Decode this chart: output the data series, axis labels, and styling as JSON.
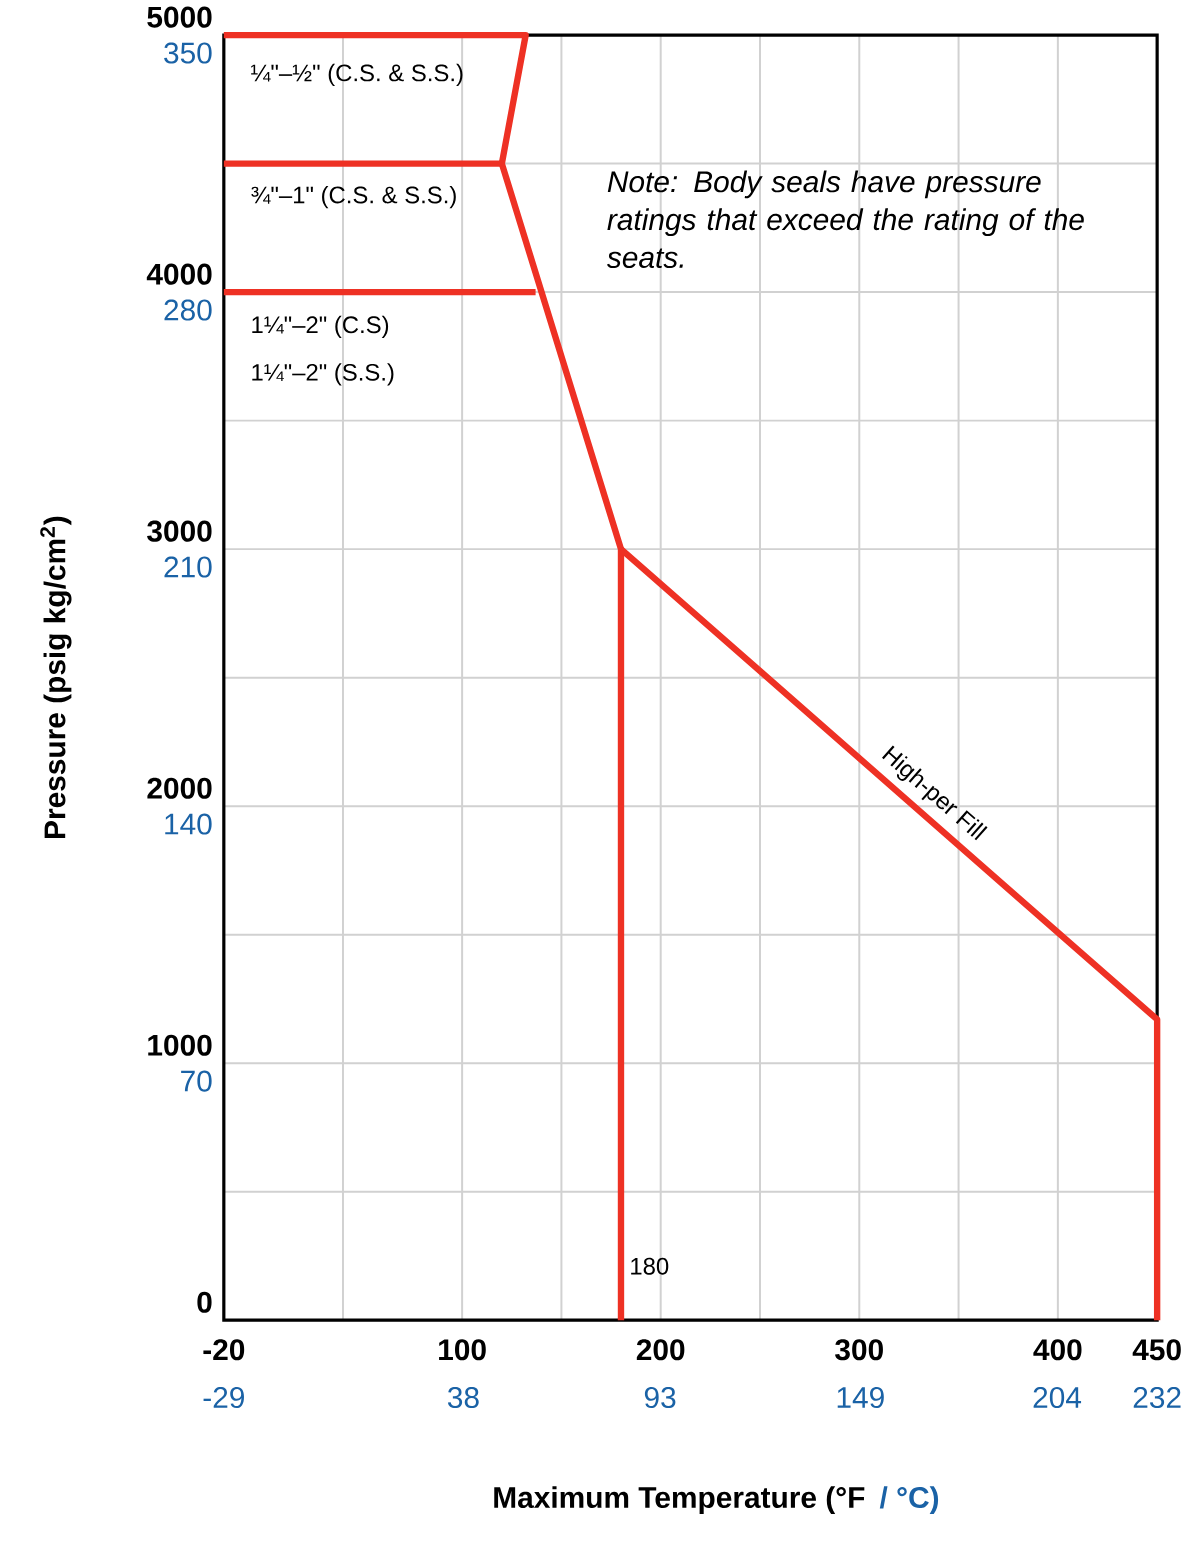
{
  "chart_data": {
    "type": "line",
    "xlabel": "Maximum Temperature (°F",
    "x2label": "/ °C)",
    "ylabel": "Pressure (psig kg/cm$^{2}$)",
    "xlim": [
      -20,
      450
    ],
    "xticks": [
      -20,
      {
        "value": 40,
        "label": null
      },
      100,
      {
        "value": 150,
        "label": null
      },
      200,
      {
        "value": 250,
        "label": null
      },
      300,
      {
        "value": 350,
        "label": null
      },
      400,
      450
    ],
    "x2lim": [
      -29,
      232
    ],
    "x2ticks": [
      -29,
      38,
      93,
      149,
      204,
      232
    ],
    "ylim": [
      0,
      5000
    ],
    "yticks": [
      0,
      {
        "value": 500,
        "label": null
      },
      1000,
      {
        "value": 1500,
        "label": null
      },
      2000,
      {
        "value": 2500,
        "label": null
      },
      3000,
      {
        "value": 3500,
        "label": null
      },
      4000,
      {
        "value": 4500,
        "label": null
      },
      5000
    ],
    "y2lim": [
      0,
      350
    ],
    "y2ticks": [
      70,
      140,
      210,
      280,
      350
    ],
    "grid": true,
    "line_style": "solid",
    "marker": "none",
    "series": [
      {
        "color": "#ee3124",
        "x": [
          -20,
          132,
          120,
          180,
          180
        ],
        "values": [
          5000,
          5000,
          4500,
          3000,
          0
        ]
      },
      {
        "color": "#ee3124",
        "x": [
          -20,
          120
        ],
        "values": [
          4500,
          4500
        ]
      },
      {
        "color": "#ee3124",
        "x": [
          -20,
          137
        ],
        "values": [
          4000,
          4000
        ]
      },
      {
        "color": "#ee3124",
        "x": [
          180,
          450,
          450
        ],
        "values": [
          3000,
          1170,
          0
        ]
      }
    ],
    "annotations": [
      "¼\"–½\" (C.S. & S.S.)",
      "¾\"–1\" (C.S. & S.S.)",
      "1¼\"–2\" (C.S)",
      "1¼\"–2\" (S.S.)",
      {
        "text": "180",
        "x": 180,
        "y": 210
      },
      {
        "text": "High-per Fill",
        "x": 330,
        "y": 1983
      },
      "Note: Body seals have pressure ratings that exceed the rating of the seats."
    ]
  }
}
